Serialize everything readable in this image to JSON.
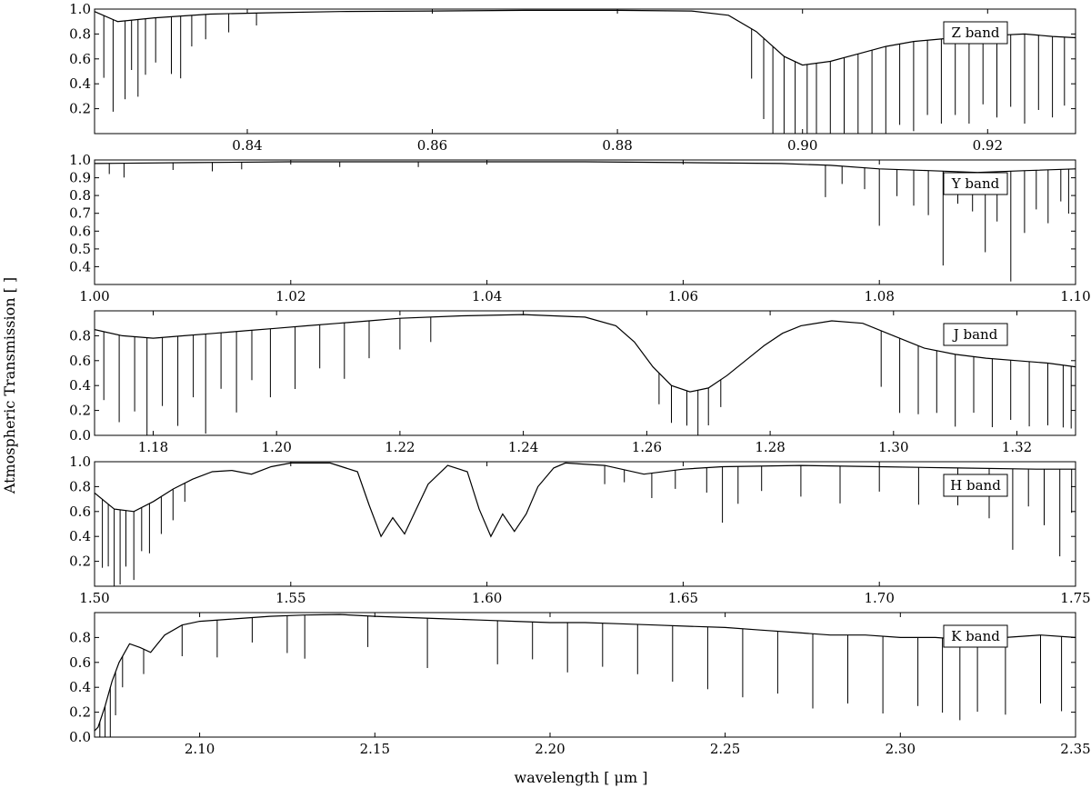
{
  "figure": {
    "ylabel": "Atmospheric Transmission [ ]",
    "xlabel": "wavelength [ μm ]"
  },
  "chart_data": [
    {
      "type": "line",
      "band_label": "Z band",
      "xlim": [
        0.8235,
        0.9295
      ],
      "ylim": [
        0.0,
        1.0
      ],
      "xticks": [
        0.84,
        0.86,
        0.88,
        0.9,
        0.92
      ],
      "xtick_labels": [
        "0.84",
        "0.86",
        "0.88",
        "0.90",
        "0.92"
      ],
      "yticks": [
        0.2,
        0.4,
        0.6,
        0.8,
        1.0
      ],
      "ytick_labels": [
        "0.2",
        "0.4",
        "0.6",
        "0.8",
        "1.0"
      ],
      "series": [
        {
          "x": [
            0.8235,
            0.826,
            0.83,
            0.836,
            0.842,
            0.85,
            0.86,
            0.87,
            0.88,
            0.888,
            0.892,
            0.895,
            0.898,
            0.9,
            0.903,
            0.906,
            0.909,
            0.912,
            0.915,
            0.918,
            0.921,
            0.924,
            0.927,
            0.9295
          ],
          "y": [
            0.98,
            0.9,
            0.93,
            0.96,
            0.97,
            0.98,
            0.985,
            0.99,
            0.99,
            0.985,
            0.95,
            0.82,
            0.62,
            0.55,
            0.58,
            0.64,
            0.7,
            0.74,
            0.76,
            0.78,
            0.79,
            0.8,
            0.78,
            0.77
          ]
        }
      ],
      "lines": [
        {
          "x": 0.8245,
          "depth": 0.5
        },
        {
          "x": 0.8255,
          "depth": 0.74
        },
        {
          "x": 0.8268,
          "depth": 0.63
        },
        {
          "x": 0.8275,
          "depth": 0.4
        },
        {
          "x": 0.8282,
          "depth": 0.62
        },
        {
          "x": 0.829,
          "depth": 0.45
        },
        {
          "x": 0.8301,
          "depth": 0.36
        },
        {
          "x": 0.8318,
          "depth": 0.46
        },
        {
          "x": 0.8328,
          "depth": 0.5
        },
        {
          "x": 0.834,
          "depth": 0.25
        },
        {
          "x": 0.8355,
          "depth": 0.2
        },
        {
          "x": 0.838,
          "depth": 0.15
        },
        {
          "x": 0.841,
          "depth": 0.1
        },
        {
          "x": 0.8945,
          "depth": 0.4
        },
        {
          "x": 0.8958,
          "depth": 0.65
        },
        {
          "x": 0.8968,
          "depth": 0.85
        },
        {
          "x": 0.898,
          "depth": 0.9
        },
        {
          "x": 0.8992,
          "depth": 0.93
        },
        {
          "x": 0.9005,
          "depth": 0.88
        },
        {
          "x": 0.9015,
          "depth": 0.92
        },
        {
          "x": 0.903,
          "depth": 0.9
        },
        {
          "x": 0.9045,
          "depth": 0.8
        },
        {
          "x": 0.906,
          "depth": 0.85
        },
        {
          "x": 0.9075,
          "depth": 0.7
        },
        {
          "x": 0.909,
          "depth": 0.78
        },
        {
          "x": 0.9105,
          "depth": 0.65
        },
        {
          "x": 0.912,
          "depth": 0.72
        },
        {
          "x": 0.9135,
          "depth": 0.6
        },
        {
          "x": 0.915,
          "depth": 0.68
        },
        {
          "x": 0.9165,
          "depth": 0.62
        },
        {
          "x": 0.918,
          "depth": 0.7
        },
        {
          "x": 0.9195,
          "depth": 0.55
        },
        {
          "x": 0.921,
          "depth": 0.66
        },
        {
          "x": 0.9225,
          "depth": 0.58
        },
        {
          "x": 0.924,
          "depth": 0.72
        },
        {
          "x": 0.9255,
          "depth": 0.6
        },
        {
          "x": 0.927,
          "depth": 0.65
        },
        {
          "x": 0.9283,
          "depth": 0.55
        }
      ]
    },
    {
      "type": "line",
      "band_label": "Y band",
      "xlim": [
        1.0,
        1.1
      ],
      "ylim": [
        0.3,
        1.0
      ],
      "xticks": [
        1.0,
        1.02,
        1.04,
        1.06,
        1.08,
        1.1
      ],
      "xtick_labels": [
        "1.00",
        "1.02",
        "1.04",
        "1.06",
        "1.08",
        "1.10"
      ],
      "yticks": [
        0.4,
        0.5,
        0.6,
        0.7,
        0.8,
        0.9,
        1.0
      ],
      "ytick_labels": [
        "0.4",
        "0.5",
        "0.6",
        "0.7",
        "0.8",
        "0.9",
        "1.0"
      ],
      "series": [
        {
          "x": [
            1.0,
            1.01,
            1.02,
            1.03,
            1.04,
            1.05,
            1.06,
            1.07,
            1.075,
            1.08,
            1.085,
            1.09,
            1.095,
            1.1
          ],
          "y": [
            0.98,
            0.985,
            0.99,
            0.99,
            0.99,
            0.99,
            0.985,
            0.98,
            0.97,
            0.95,
            0.94,
            0.93,
            0.94,
            0.95
          ]
        }
      ],
      "lines": [
        {
          "x": 1.0015,
          "depth": 0.06
        },
        {
          "x": 1.003,
          "depth": 0.08
        },
        {
          "x": 1.008,
          "depth": 0.04
        },
        {
          "x": 1.012,
          "depth": 0.05
        },
        {
          "x": 1.015,
          "depth": 0.04
        },
        {
          "x": 1.025,
          "depth": 0.03
        },
        {
          "x": 1.033,
          "depth": 0.03
        },
        {
          "x": 1.0745,
          "depth": 0.18
        },
        {
          "x": 1.0762,
          "depth": 0.1
        },
        {
          "x": 1.0785,
          "depth": 0.12
        },
        {
          "x": 1.08,
          "depth": 0.32
        },
        {
          "x": 1.0818,
          "depth": 0.15
        },
        {
          "x": 1.0835,
          "depth": 0.2
        },
        {
          "x": 1.085,
          "depth": 0.25
        },
        {
          "x": 1.0865,
          "depth": 0.53
        },
        {
          "x": 1.088,
          "depth": 0.18
        },
        {
          "x": 1.0895,
          "depth": 0.22
        },
        {
          "x": 1.0908,
          "depth": 0.45
        },
        {
          "x": 1.092,
          "depth": 0.28
        },
        {
          "x": 1.0934,
          "depth": 0.62
        },
        {
          "x": 1.0948,
          "depth": 0.35
        },
        {
          "x": 1.096,
          "depth": 0.22
        },
        {
          "x": 1.0972,
          "depth": 0.3
        },
        {
          "x": 1.0985,
          "depth": 0.18
        },
        {
          "x": 1.0993,
          "depth": 0.25
        }
      ]
    },
    {
      "type": "line",
      "band_label": "J band",
      "xlim": [
        1.1705,
        1.3295
      ],
      "ylim": [
        0.0,
        1.0
      ],
      "xticks": [
        1.18,
        1.2,
        1.22,
        1.24,
        1.26,
        1.28,
        1.3,
        1.32
      ],
      "xtick_labels": [
        "1.18",
        "1.20",
        "1.22",
        "1.24",
        "1.26",
        "1.28",
        "1.30",
        "1.32"
      ],
      "yticks": [
        0.0,
        0.2,
        0.4,
        0.6,
        0.8
      ],
      "ytick_labels": [
        "0.0",
        "0.2",
        "0.4",
        "0.6",
        "0.8"
      ],
      "series": [
        {
          "x": [
            1.1705,
            1.175,
            1.18,
            1.185,
            1.19,
            1.195,
            1.2,
            1.205,
            1.21,
            1.215,
            1.22,
            1.23,
            1.24,
            1.25,
            1.255,
            1.258,
            1.261,
            1.264,
            1.267,
            1.27,
            1.273,
            1.276,
            1.279,
            1.282,
            1.285,
            1.29,
            1.295,
            1.3,
            1.305,
            1.31,
            1.315,
            1.32,
            1.325,
            1.3295
          ],
          "y": [
            0.85,
            0.8,
            0.78,
            0.8,
            0.82,
            0.84,
            0.86,
            0.88,
            0.9,
            0.92,
            0.94,
            0.96,
            0.97,
            0.95,
            0.88,
            0.75,
            0.55,
            0.4,
            0.35,
            0.38,
            0.48,
            0.6,
            0.72,
            0.82,
            0.88,
            0.92,
            0.9,
            0.8,
            0.7,
            0.65,
            0.62,
            0.6,
            0.58,
            0.55
          ]
        }
      ],
      "lines": [
        {
          "x": 1.172,
          "depth": 0.55
        },
        {
          "x": 1.1745,
          "depth": 0.7
        },
        {
          "x": 1.177,
          "depth": 0.6
        },
        {
          "x": 1.179,
          "depth": 0.78
        },
        {
          "x": 1.1815,
          "depth": 0.55
        },
        {
          "x": 1.184,
          "depth": 0.72
        },
        {
          "x": 1.1865,
          "depth": 0.5
        },
        {
          "x": 1.1885,
          "depth": 0.8
        },
        {
          "x": 1.191,
          "depth": 0.45
        },
        {
          "x": 1.1935,
          "depth": 0.65
        },
        {
          "x": 1.196,
          "depth": 0.4
        },
        {
          "x": 1.199,
          "depth": 0.55
        },
        {
          "x": 1.203,
          "depth": 0.5
        },
        {
          "x": 1.207,
          "depth": 0.35
        },
        {
          "x": 1.211,
          "depth": 0.45
        },
        {
          "x": 1.215,
          "depth": 0.3
        },
        {
          "x": 1.22,
          "depth": 0.25
        },
        {
          "x": 1.225,
          "depth": 0.2
        },
        {
          "x": 1.262,
          "depth": 0.25
        },
        {
          "x": 1.264,
          "depth": 0.3
        },
        {
          "x": 1.2665,
          "depth": 0.28
        },
        {
          "x": 1.2683,
          "depth": 0.55
        },
        {
          "x": 1.27,
          "depth": 0.3
        },
        {
          "x": 1.272,
          "depth": 0.22
        },
        {
          "x": 1.298,
          "depth": 0.45
        },
        {
          "x": 1.301,
          "depth": 0.6
        },
        {
          "x": 1.304,
          "depth": 0.55
        },
        {
          "x": 1.307,
          "depth": 0.5
        },
        {
          "x": 1.31,
          "depth": 0.58
        },
        {
          "x": 1.313,
          "depth": 0.45
        },
        {
          "x": 1.316,
          "depth": 0.55
        },
        {
          "x": 1.319,
          "depth": 0.48
        },
        {
          "x": 1.322,
          "depth": 0.52
        },
        {
          "x": 1.325,
          "depth": 0.5
        },
        {
          "x": 1.3275,
          "depth": 0.5
        },
        {
          "x": 1.3288,
          "depth": 0.5
        }
      ]
    },
    {
      "type": "line",
      "band_label": "H band",
      "xlim": [
        1.5,
        1.75
      ],
      "ylim": [
        0.0,
        1.0
      ],
      "xticks": [
        1.5,
        1.55,
        1.6,
        1.65,
        1.7,
        1.75
      ],
      "xtick_labels": [
        "1.50",
        "1.55",
        "1.60",
        "1.65",
        "1.70",
        "1.75"
      ],
      "yticks": [
        0.2,
        0.4,
        0.6,
        0.8,
        1.0
      ],
      "ytick_labels": [
        "0.2",
        "0.4",
        "0.6",
        "0.8",
        "1.0"
      ],
      "series": [
        {
          "x": [
            1.5,
            1.505,
            1.51,
            1.515,
            1.52,
            1.525,
            1.53,
            1.535,
            1.54,
            1.545,
            1.55,
            1.56,
            1.567,
            1.57,
            1.573,
            1.576,
            1.579,
            1.582,
            1.585,
            1.59,
            1.595,
            1.598,
            1.601,
            1.604,
            1.607,
            1.61,
            1.613,
            1.617,
            1.62,
            1.63,
            1.64,
            1.65,
            1.66,
            1.68,
            1.7,
            1.72,
            1.74,
            1.75
          ],
          "y": [
            0.75,
            0.62,
            0.6,
            0.68,
            0.78,
            0.86,
            0.92,
            0.93,
            0.9,
            0.96,
            0.99,
            0.99,
            0.92,
            0.65,
            0.4,
            0.55,
            0.42,
            0.62,
            0.82,
            0.97,
            0.92,
            0.62,
            0.4,
            0.58,
            0.44,
            0.58,
            0.8,
            0.95,
            0.99,
            0.97,
            0.9,
            0.94,
            0.96,
            0.97,
            0.96,
            0.95,
            0.94,
            0.94
          ]
        }
      ],
      "lines": [
        {
          "x": 1.502,
          "depth": 0.55
        },
        {
          "x": 1.5035,
          "depth": 0.5
        },
        {
          "x": 1.505,
          "depth": 0.7
        },
        {
          "x": 1.5065,
          "depth": 0.6
        },
        {
          "x": 1.508,
          "depth": 0.45
        },
        {
          "x": 1.51,
          "depth": 0.55
        },
        {
          "x": 1.512,
          "depth": 0.35
        },
        {
          "x": 1.514,
          "depth": 0.4
        },
        {
          "x": 1.517,
          "depth": 0.3
        },
        {
          "x": 1.52,
          "depth": 0.25
        },
        {
          "x": 1.523,
          "depth": 0.15
        },
        {
          "x": 1.63,
          "depth": 0.15
        },
        {
          "x": 1.635,
          "depth": 0.1
        },
        {
          "x": 1.642,
          "depth": 0.2
        },
        {
          "x": 1.648,
          "depth": 0.15
        },
        {
          "x": 1.656,
          "depth": 0.2
        },
        {
          "x": 1.66,
          "depth": 0.45
        },
        {
          "x": 1.664,
          "depth": 0.3
        },
        {
          "x": 1.67,
          "depth": 0.2
        },
        {
          "x": 1.68,
          "depth": 0.25
        },
        {
          "x": 1.69,
          "depth": 0.3
        },
        {
          "x": 1.7,
          "depth": 0.2
        },
        {
          "x": 1.71,
          "depth": 0.3
        },
        {
          "x": 1.72,
          "depth": 0.3
        },
        {
          "x": 1.728,
          "depth": 0.4
        },
        {
          "x": 1.734,
          "depth": 0.65
        },
        {
          "x": 1.738,
          "depth": 0.3
        },
        {
          "x": 1.742,
          "depth": 0.45
        },
        {
          "x": 1.746,
          "depth": 0.7
        },
        {
          "x": 1.749,
          "depth": 0.35
        }
      ]
    },
    {
      "type": "line",
      "band_label": "K band",
      "xlim": [
        2.07,
        2.35
      ],
      "ylim": [
        0.0,
        1.0
      ],
      "xticks": [
        2.1,
        2.15,
        2.2,
        2.25,
        2.3,
        2.35
      ],
      "xtick_labels": [
        "2.10",
        "2.15",
        "2.20",
        "2.25",
        "2.30",
        "2.35"
      ],
      "yticks": [
        0.0,
        0.2,
        0.4,
        0.6,
        0.8
      ],
      "ytick_labels": [
        "0.0",
        "0.2",
        "0.4",
        "0.6",
        "0.8"
      ],
      "series": [
        {
          "x": [
            2.07,
            2.071,
            2.073,
            2.075,
            2.077,
            2.08,
            2.083,
            2.086,
            2.09,
            2.095,
            2.1,
            2.11,
            2.12,
            2.13,
            2.14,
            2.15,
            2.16,
            2.17,
            2.18,
            2.19,
            2.2,
            2.21,
            2.22,
            2.23,
            2.24,
            2.25,
            2.26,
            2.27,
            2.28,
            2.29,
            2.3,
            2.31,
            2.32,
            2.33,
            2.34,
            2.35
          ],
          "y": [
            0.05,
            0.08,
            0.25,
            0.45,
            0.6,
            0.75,
            0.72,
            0.68,
            0.82,
            0.9,
            0.93,
            0.95,
            0.97,
            0.98,
            0.985,
            0.97,
            0.96,
            0.95,
            0.94,
            0.93,
            0.92,
            0.92,
            0.91,
            0.9,
            0.89,
            0.88,
            0.86,
            0.84,
            0.82,
            0.82,
            0.8,
            0.8,
            0.78,
            0.8,
            0.82,
            0.8
          ]
        }
      ],
      "lines": [
        {
          "x": 2.0715,
          "depth": 0.55
        },
        {
          "x": 2.073,
          "depth": 0.5
        },
        {
          "x": 2.0745,
          "depth": 0.45
        },
        {
          "x": 2.076,
          "depth": 0.35
        },
        {
          "x": 2.078,
          "depth": 0.25
        },
        {
          "x": 2.084,
          "depth": 0.2
        },
        {
          "x": 2.095,
          "depth": 0.25
        },
        {
          "x": 2.105,
          "depth": 0.3
        },
        {
          "x": 2.115,
          "depth": 0.2
        },
        {
          "x": 2.125,
          "depth": 0.3
        },
        {
          "x": 2.13,
          "depth": 0.35
        },
        {
          "x": 2.148,
          "depth": 0.25
        },
        {
          "x": 2.165,
          "depth": 0.4
        },
        {
          "x": 2.185,
          "depth": 0.35
        },
        {
          "x": 2.195,
          "depth": 0.3
        },
        {
          "x": 2.205,
          "depth": 0.4
        },
        {
          "x": 2.215,
          "depth": 0.35
        },
        {
          "x": 2.225,
          "depth": 0.4
        },
        {
          "x": 2.235,
          "depth": 0.45
        },
        {
          "x": 2.245,
          "depth": 0.5
        },
        {
          "x": 2.255,
          "depth": 0.55
        },
        {
          "x": 2.265,
          "depth": 0.5
        },
        {
          "x": 2.275,
          "depth": 0.6
        },
        {
          "x": 2.285,
          "depth": 0.55
        },
        {
          "x": 2.295,
          "depth": 0.62
        },
        {
          "x": 2.305,
          "depth": 0.55
        },
        {
          "x": 2.312,
          "depth": 0.6
        },
        {
          "x": 2.317,
          "depth": 0.65
        },
        {
          "x": 2.322,
          "depth": 0.58
        },
        {
          "x": 2.33,
          "depth": 0.62
        },
        {
          "x": 2.34,
          "depth": 0.55
        },
        {
          "x": 2.346,
          "depth": 0.6
        }
      ]
    }
  ]
}
